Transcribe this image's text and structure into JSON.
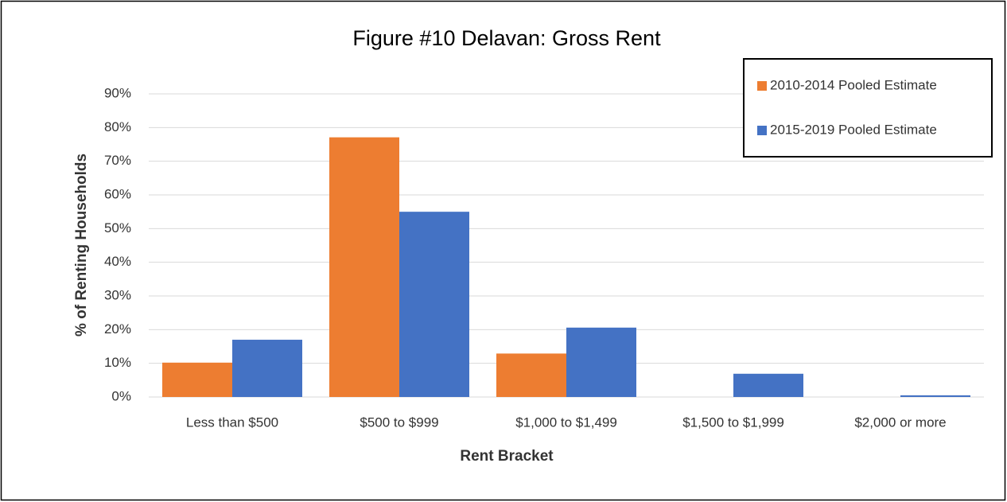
{
  "chart_data": {
    "type": "bar",
    "title": "Figure #10  Delavan: Gross Rent",
    "x_label": "Rent Bracket",
    "y_label": "% of Renting Households",
    "categories": [
      "Less than $500",
      "$500 to $999",
      "$1,000 to $1,499",
      "$1,500 to $1,999",
      "$2,000 or more"
    ],
    "series": [
      {
        "name": "2010-2014 Pooled Estimate",
        "color": "#ed7d31",
        "values": [
          10.2,
          77.1,
          12.9,
          0,
          0
        ]
      },
      {
        "name": "2015-2019 Pooled Estimate",
        "color": "#4472c4",
        "values": [
          17.0,
          55.0,
          20.6,
          6.9,
          0.5
        ]
      }
    ],
    "ylim": [
      0,
      90
    ],
    "yticks": [
      {
        "value": 0,
        "label": "0%"
      },
      {
        "value": 10,
        "label": "10%"
      },
      {
        "value": 20,
        "label": "20%"
      },
      {
        "value": 30,
        "label": "30%"
      },
      {
        "value": 40,
        "label": "40%"
      },
      {
        "value": 50,
        "label": "50%"
      },
      {
        "value": 60,
        "label": "60%"
      },
      {
        "value": 70,
        "label": "70%"
      },
      {
        "value": 80,
        "label": "80%"
      },
      {
        "value": 90,
        "label": "90%"
      }
    ],
    "grid": true,
    "legend": "upper right"
  }
}
